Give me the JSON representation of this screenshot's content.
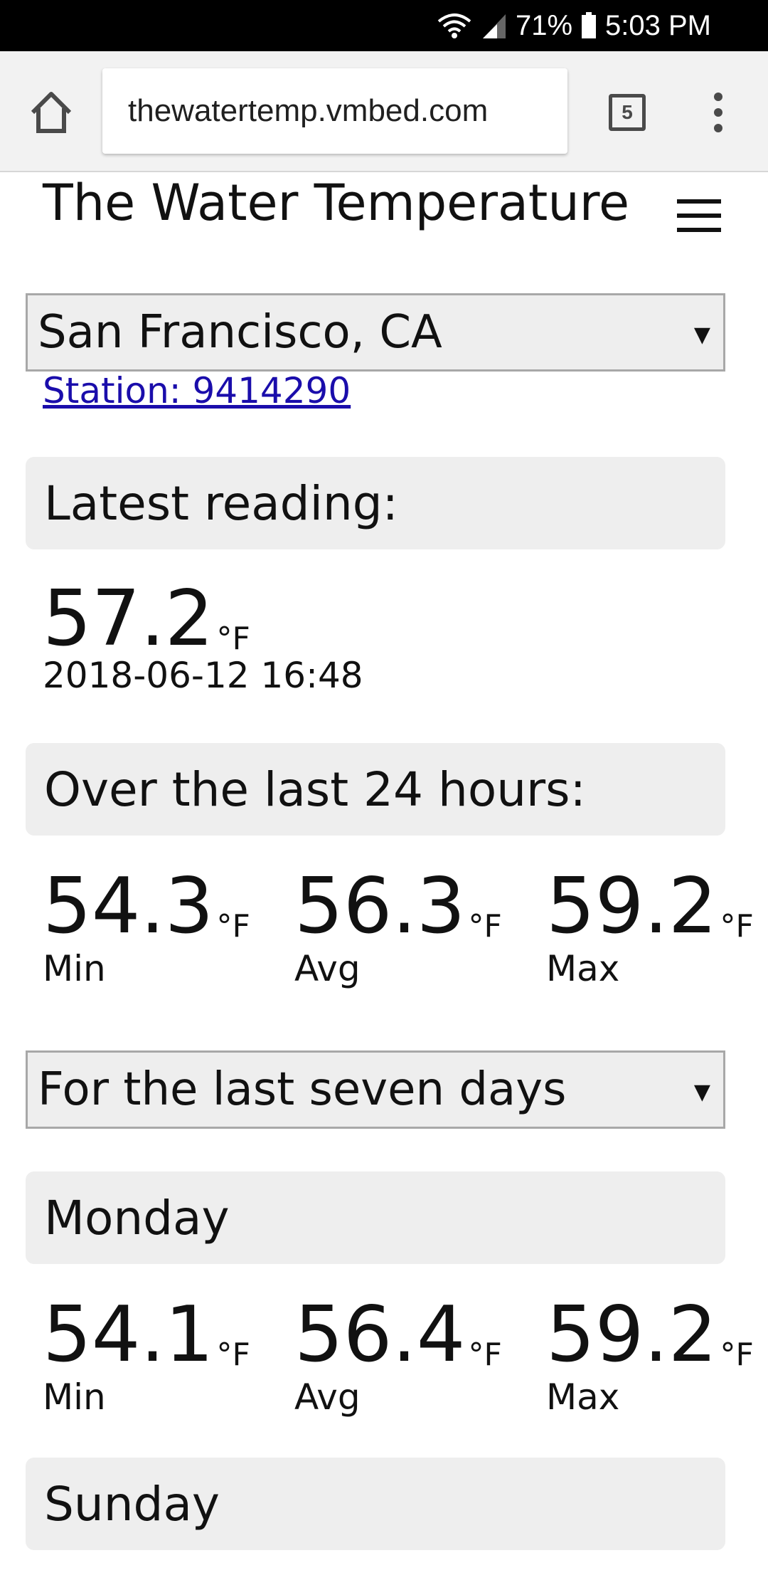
{
  "status_bar": {
    "battery": "71%",
    "time": "5:03 PM"
  },
  "browser": {
    "url": "thewatertemp.vmbed.com",
    "tab_count": "5"
  },
  "site": {
    "title": "The Water Temperature"
  },
  "location_select": {
    "selected": "San Francisco, CA",
    "arrow": "▼"
  },
  "station_link": "Station: 9414290",
  "latest": {
    "heading": "Latest reading:",
    "value": "57.2",
    "unit": "°F",
    "timestamp": "2018-06-12 16:48"
  },
  "last24": {
    "heading": "Over the last 24 hours:",
    "stats": [
      {
        "value": "54.3",
        "unit": "°F",
        "label": "Min"
      },
      {
        "value": "56.3",
        "unit": "°F",
        "label": "Avg"
      },
      {
        "value": "59.2",
        "unit": "°F",
        "label": "Max"
      }
    ]
  },
  "period_select": {
    "selected": "For the last seven days",
    "arrow": "▼"
  },
  "days": [
    {
      "heading": "Monday",
      "stats": [
        {
          "value": "54.1",
          "unit": "°F",
          "label": "Min"
        },
        {
          "value": "56.4",
          "unit": "°F",
          "label": "Avg"
        },
        {
          "value": "59.2",
          "unit": "°F",
          "label": "Max"
        }
      ]
    },
    {
      "heading": "Sunday"
    }
  ]
}
